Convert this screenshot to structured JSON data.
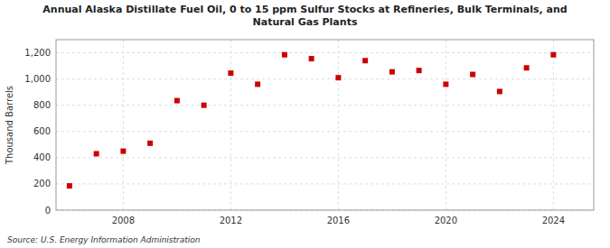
{
  "chart_data": {
    "type": "scatter",
    "title": "Annual Alaska Distillate Fuel Oil, 0 to 15 ppm Sulfur Stocks at Refineries, Bulk Terminals, and\nNatural Gas Plants",
    "y_label": "Thousand Barrels",
    "source": "Source: U.S. Energy Information Administration",
    "x": [
      2006,
      2007,
      2008,
      2009,
      2010,
      2011,
      2012,
      2013,
      2014,
      2015,
      2016,
      2017,
      2018,
      2019,
      2020,
      2021,
      2022,
      2023,
      2024
    ],
    "values": [
      185,
      430,
      450,
      510,
      835,
      800,
      1045,
      960,
      1185,
      1155,
      1010,
      1140,
      1055,
      1065,
      960,
      1035,
      905,
      1085,
      1185
    ],
    "color": "#cc0000",
    "marker": "square",
    "xlim": [
      2005.5,
      2025.5
    ],
    "xticks": [
      2008,
      2012,
      2016,
      2020,
      2024
    ],
    "ylim": [
      0,
      1300
    ],
    "yticks": [
      0,
      200,
      400,
      600,
      800,
      {
        "value": 1000,
        "label": "1,000"
      },
      {
        "value": 1200,
        "label": "1,200"
      }
    ],
    "grid": true
  }
}
